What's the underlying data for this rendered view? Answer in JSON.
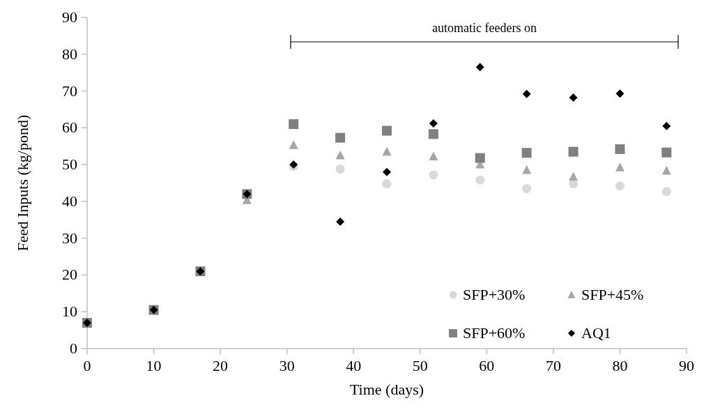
{
  "chart_data": {
    "type": "scatter",
    "xlabel": "Time (days)",
    "ylabel": "Feed Inputs (kg/pond)",
    "x": [
      0,
      10,
      17,
      24,
      31,
      38,
      45,
      52,
      59,
      66,
      73,
      80,
      87
    ],
    "xlim": [
      0,
      90
    ],
    "xticks": [
      0,
      10,
      20,
      30,
      40,
      50,
      60,
      70,
      80,
      90
    ],
    "ylim": [
      0,
      90
    ],
    "yticks": [
      0,
      10,
      20,
      30,
      40,
      50,
      60,
      70,
      80,
      90
    ],
    "grid": false,
    "legend": "bottom right",
    "annotations": [
      "automatic feeders on"
    ],
    "series": [
      {
        "name": "SFP+30%",
        "color": "#d9d9d9",
        "marker": "circle",
        "values": [
          null,
          null,
          null,
          null,
          49.5,
          48.8,
          44.8,
          47.2,
          45.8,
          43.5,
          44.8,
          44.2,
          42.7
        ]
      },
      {
        "name": "SFP+45%",
        "color": "#a6a6a6",
        "marker": "triangle",
        "values": [
          null,
          null,
          null,
          40.3,
          55.3,
          52.5,
          53.5,
          52.2,
          50,
          48.5,
          46.7,
          49.2,
          48.3
        ]
      },
      {
        "name": "SFP+60%",
        "color": "#808080",
        "marker": "square",
        "values": [
          7,
          10.5,
          21,
          42,
          61,
          57.3,
          59.2,
          58.3,
          51.8,
          53.2,
          53.5,
          54.2,
          53.3
        ]
      },
      {
        "name": "AQ1",
        "color": "#000000",
        "marker": "diamond",
        "values": [
          7,
          10.5,
          21,
          42,
          50,
          34.5,
          48,
          61.2,
          76.5,
          69.2,
          68.2,
          69.3,
          60.5
        ]
      }
    ]
  }
}
